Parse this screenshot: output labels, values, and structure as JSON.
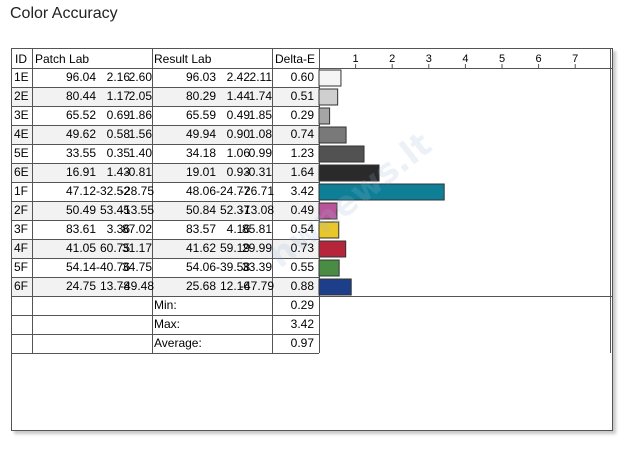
{
  "title": "Color Accuracy",
  "columns": {
    "id": "ID",
    "patch": "Patch Lab",
    "result": "Result Lab",
    "delta": "Delta-E"
  },
  "watermark": "hwnews.lt",
  "chart_data": {
    "type": "table",
    "title": "Color Accuracy",
    "columns": [
      "ID",
      "Patch Lab",
      "Result Lab",
      "Delta-E"
    ],
    "axis_ticks": [
      1,
      2,
      3,
      4,
      5,
      6,
      7
    ],
    "xlim": [
      0,
      7.8
    ],
    "rows": [
      {
        "id": "1E",
        "patch": [
          "96.04",
          "2.16",
          "2.60"
        ],
        "result": [
          "96.03",
          "2.42",
          "2.11"
        ],
        "delta": "0.60",
        "value": 0.6,
        "color": "#f5f5f5"
      },
      {
        "id": "2E",
        "patch": [
          "80.44",
          "1.17",
          "2.05"
        ],
        "result": [
          "80.29",
          "1.44",
          "1.74"
        ],
        "delta": "0.51",
        "value": 0.51,
        "color": "#cfcfcf"
      },
      {
        "id": "3E",
        "patch": [
          "65.52",
          "0.69",
          "1.86"
        ],
        "result": [
          "65.59",
          "0.49",
          "1.85"
        ],
        "delta": "0.29",
        "value": 0.29,
        "color": "#a5a5a5"
      },
      {
        "id": "4E",
        "patch": [
          "49.62",
          "0.58",
          "1.56"
        ],
        "result": [
          "49.94",
          "0.90",
          "1.08"
        ],
        "delta": "0.74",
        "value": 0.74,
        "color": "#797979"
      },
      {
        "id": "5E",
        "patch": [
          "33.55",
          "0.35",
          "1.40"
        ],
        "result": [
          "34.18",
          "1.06",
          "0.99"
        ],
        "delta": "1.23",
        "value": 1.23,
        "color": "#525252"
      },
      {
        "id": "6E",
        "patch": [
          "16.91",
          "1.43",
          "-0.81"
        ],
        "result": [
          "19.01",
          "0.93",
          "-0.31"
        ],
        "delta": "1.64",
        "value": 1.64,
        "color": "#2a2a2a"
      },
      {
        "id": "1F",
        "patch": [
          "47.12",
          "-32.52",
          "-28.75"
        ],
        "result": [
          "48.06",
          "-24.77",
          "-26.71"
        ],
        "delta": "3.42",
        "value": 3.42,
        "color": "#0e7f96"
      },
      {
        "id": "2F",
        "patch": [
          "50.49",
          "53.45",
          "-13.55"
        ],
        "result": [
          "50.84",
          "52.37",
          "-13.08"
        ],
        "delta": "0.49",
        "value": 0.49,
        "color": "#b9569a"
      },
      {
        "id": "3F",
        "patch": [
          "83.61",
          "3.36",
          "87.02"
        ],
        "result": [
          "83.57",
          "4.16",
          "85.81"
        ],
        "delta": "0.54",
        "value": 0.54,
        "color": "#e9c62a"
      },
      {
        "id": "4F",
        "patch": [
          "41.05",
          "60.75",
          "31.17"
        ],
        "result": [
          "41.62",
          "59.19",
          "29.99"
        ],
        "delta": "0.73",
        "value": 0.73,
        "color": "#b5263a"
      },
      {
        "id": "5F",
        "patch": [
          "54.14",
          "-40.76",
          "34.75"
        ],
        "result": [
          "54.06",
          "-39.58",
          "33.39"
        ],
        "delta": "0.55",
        "value": 0.55,
        "color": "#4b8c45"
      },
      {
        "id": "6F",
        "patch": [
          "24.75",
          "13.78",
          "-49.48"
        ],
        "result": [
          "25.68",
          "12.16",
          "-47.79"
        ],
        "delta": "0.88",
        "value": 0.88,
        "color": "#1d3f8a"
      }
    ],
    "summary": [
      {
        "label": "Min:",
        "value": "0.29"
      },
      {
        "label": "Max:",
        "value": "3.42"
      },
      {
        "label": "Average:",
        "value": "0.97"
      }
    ]
  }
}
